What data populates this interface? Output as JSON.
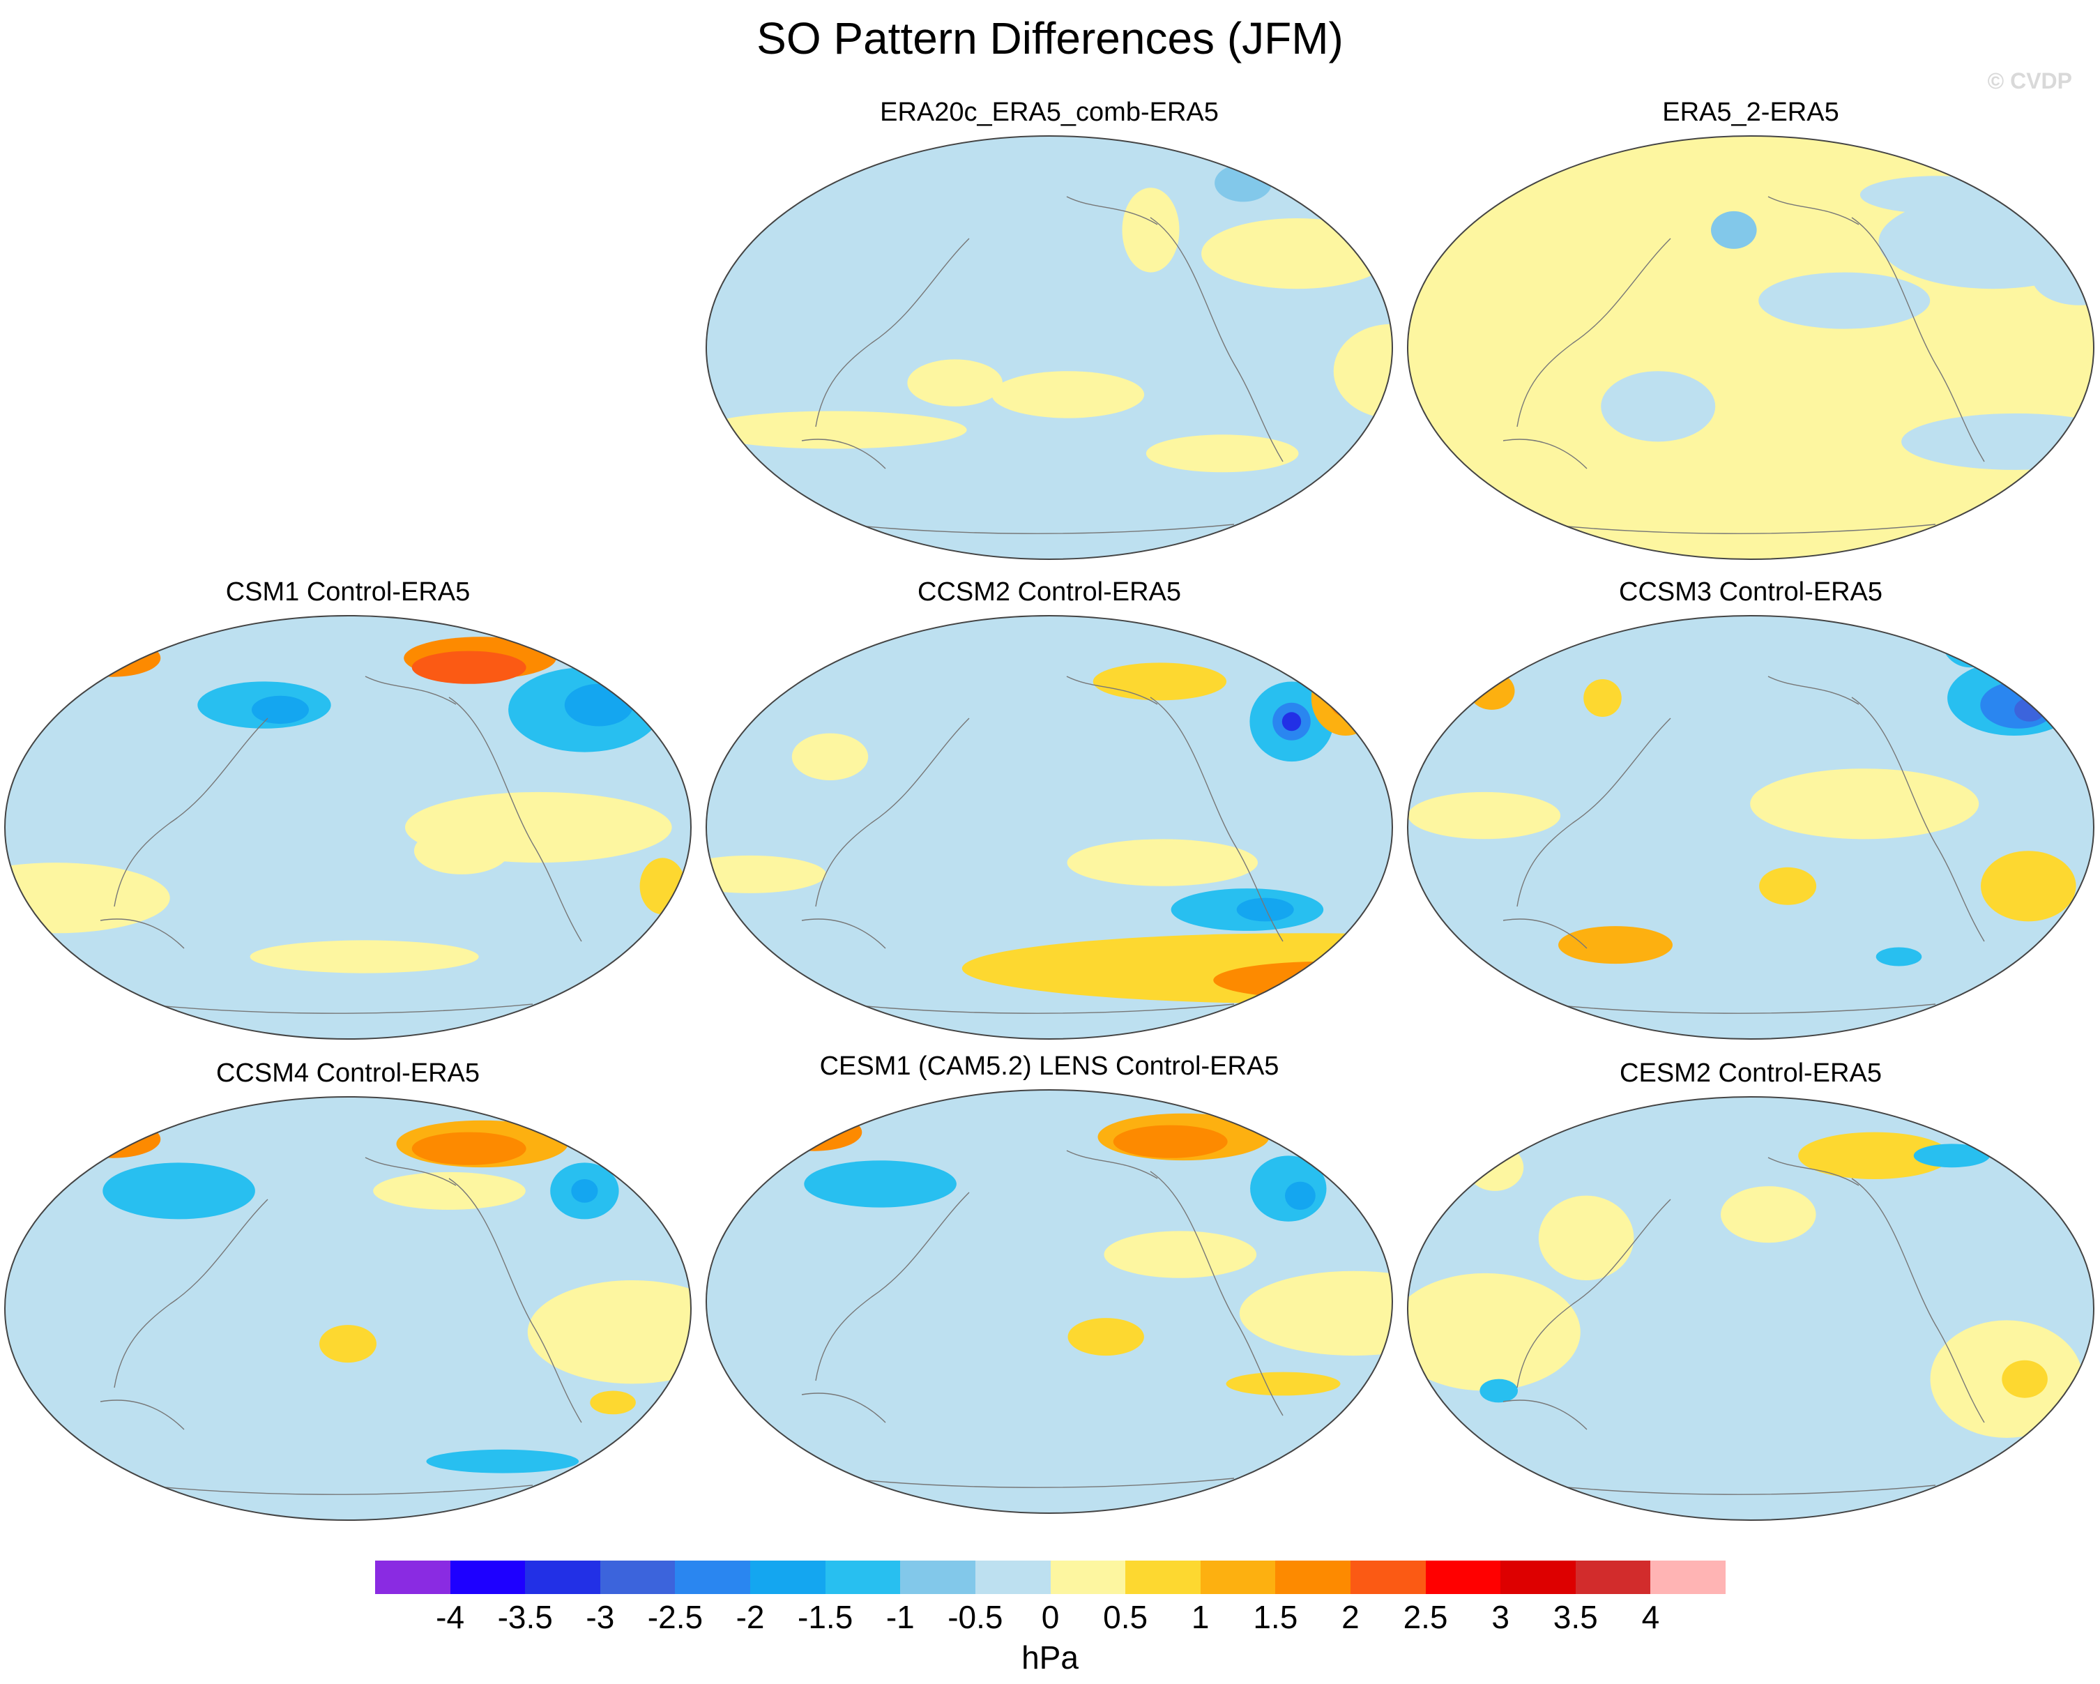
{
  "title": "SO Pattern Differences (JFM)",
  "watermark": "© CVDP",
  "panels": [
    {
      "id": "p1",
      "title": "ERA20c_ERA5_comb-ERA5",
      "base": "#bde0f0",
      "blobs": [
        {
          "lon": -20,
          "lat": 40,
          "rx": 50,
          "ry": 15,
          "level": 0.3
        },
        {
          "lon": 80,
          "lat": -35,
          "rx": 70,
          "ry": 8,
          "level": 0.3
        },
        {
          "lon": -150,
          "lat": -20,
          "rx": 40,
          "ry": 10,
          "level": 0.3
        },
        {
          "lon": 20,
          "lat": -10,
          "rx": 30,
          "ry": 20,
          "level": 0.3
        },
        {
          "lon": -100,
          "lat": 50,
          "rx": 15,
          "ry": 18,
          "level": 0.3
        },
        {
          "lon": 150,
          "lat": -15,
          "rx": 25,
          "ry": 10,
          "level": 0.3
        },
        {
          "lon": -60,
          "lat": -45,
          "rx": 40,
          "ry": 8,
          "level": 0.3
        },
        {
          "lon": -30,
          "lat": 70,
          "rx": 15,
          "ry": 8,
          "level": -0.7
        }
      ]
    },
    {
      "id": "p2",
      "title": "ERA5_2-ERA5",
      "base": "#fdf6a0",
      "blobs": [
        {
          "lon": -20,
          "lat": 45,
          "rx": 60,
          "ry": 20,
          "level": -0.3
        },
        {
          "lon": -10,
          "lat": -40,
          "rx": 60,
          "ry": 12,
          "level": -0.3
        },
        {
          "lon": 150,
          "lat": -25,
          "rx": 30,
          "ry": 15,
          "level": -0.3
        },
        {
          "lon": -110,
          "lat": 20,
          "rx": 45,
          "ry": 12,
          "level": -0.3
        },
        {
          "lon": 20,
          "lat": 30,
          "rx": 25,
          "ry": 12,
          "level": -0.3
        },
        {
          "lon": -170,
          "lat": 50,
          "rx": 12,
          "ry": 8,
          "level": -0.7
        },
        {
          "lon": -40,
          "lat": 65,
          "rx": 40,
          "ry": 8,
          "level": -0.3
        }
      ]
    },
    {
      "id": "p3",
      "title": "CSM1 Control-ERA5",
      "base": "#bde0f0",
      "blobs": [
        {
          "lon": -70,
          "lat": 72,
          "rx": 40,
          "ry": 9,
          "level": 1.6
        },
        {
          "lon": -80,
          "lat": 68,
          "rx": 30,
          "ry": 7,
          "level": 2.1
        },
        {
          "lon": 40,
          "lat": 72,
          "rx": 25,
          "ry": 8,
          "level": 1.6
        },
        {
          "lon": -20,
          "lat": 50,
          "rx": 40,
          "ry": 18,
          "level": -1.1
        },
        {
          "lon": -10,
          "lat": 52,
          "rx": 18,
          "ry": 9,
          "level": -1.7
        },
        {
          "lon": 150,
          "lat": 52,
          "rx": 35,
          "ry": 10,
          "level": -1.1
        },
        {
          "lon": 160,
          "lat": 50,
          "rx": 15,
          "ry": 6,
          "level": -1.7
        },
        {
          "lon": -60,
          "lat": 0,
          "rx": 70,
          "ry": 15,
          "level": 0.3
        },
        {
          "lon": 40,
          "lat": -30,
          "rx": 60,
          "ry": 15,
          "level": 0.3
        },
        {
          "lon": 10,
          "lat": -25,
          "rx": 12,
          "ry": 12,
          "level": 0.8
        },
        {
          "lon": -100,
          "lat": -10,
          "rx": 25,
          "ry": 10,
          "level": 0.3
        },
        {
          "lon": -150,
          "lat": -55,
          "rx": 60,
          "ry": 7,
          "level": 0.3
        }
      ]
    },
    {
      "id": "p4",
      "title": "CCSM2 Control-ERA5",
      "base": "#bde0f0",
      "blobs": [
        {
          "lon": -20,
          "lat": 45,
          "rx": 22,
          "ry": 17,
          "level": -1.2
        },
        {
          "lon": -20,
          "lat": 45,
          "rx": 10,
          "ry": 8,
          "level": -2.5
        },
        {
          "lon": -20,
          "lat": 45,
          "rx": 5,
          "ry": 4,
          "level": -3.2
        },
        {
          "lon": 20,
          "lat": 55,
          "rx": 18,
          "ry": 16,
          "level": 1.2
        },
        {
          "lon": 20,
          "lat": 55,
          "rx": 9,
          "ry": 8,
          "level": 1.8
        },
        {
          "lon": 0,
          "lat": -60,
          "rx": 180,
          "ry": 15,
          "level": 0.8
        },
        {
          "lon": 20,
          "lat": -65,
          "rx": 60,
          "ry": 8,
          "level": 1.6
        },
        {
          "lon": -50,
          "lat": -35,
          "rx": 40,
          "ry": 9,
          "level": -1.2
        },
        {
          "lon": -40,
          "lat": -35,
          "rx": 15,
          "ry": 5,
          "level": -1.8
        },
        {
          "lon": -100,
          "lat": -15,
          "rx": 50,
          "ry": 10,
          "level": 0.3
        },
        {
          "lon": 40,
          "lat": -20,
          "rx": 40,
          "ry": 8,
          "level": 0.3
        },
        {
          "lon": -90,
          "lat": 62,
          "rx": 35,
          "ry": 8,
          "level": 0.8
        },
        {
          "lon": 80,
          "lat": 30,
          "rx": 20,
          "ry": 10,
          "level": 0.3
        }
      ]
    },
    {
      "id": "p5",
      "title": "CCSM3 Control-ERA5",
      "base": "#bde0f0",
      "blobs": [
        {
          "lon": 0,
          "lat": 55,
          "rx": 35,
          "ry": 16,
          "level": -1.2
        },
        {
          "lon": 0,
          "lat": 52,
          "rx": 20,
          "ry": 10,
          "level": -2.2
        },
        {
          "lon": 5,
          "lat": 50,
          "rx": 8,
          "ry": 5,
          "level": -3.0
        },
        {
          "lon": 0,
          "lat": 80,
          "rx": 15,
          "ry": 12,
          "level": -1.2
        },
        {
          "lon": 40,
          "lat": 58,
          "rx": 12,
          "ry": 8,
          "level": 1.2
        },
        {
          "lon": 110,
          "lat": 55,
          "rx": 10,
          "ry": 8,
          "level": 0.8
        },
        {
          "lon": -100,
          "lat": 10,
          "rx": 60,
          "ry": 15,
          "level": 0.3
        },
        {
          "lon": -10,
          "lat": -25,
          "rx": 25,
          "ry": 15,
          "level": 0.8
        },
        {
          "lon": 120,
          "lat": -50,
          "rx": 30,
          "ry": 8,
          "level": 1.2
        },
        {
          "lon": -140,
          "lat": -25,
          "rx": 15,
          "ry": 8,
          "level": 0.8
        },
        {
          "lon": 60,
          "lat": 5,
          "rx": 40,
          "ry": 10,
          "level": 0.3
        },
        {
          "lon": -70,
          "lat": -55,
          "rx": 12,
          "ry": 4,
          "level": -1.2
        }
      ]
    },
    {
      "id": "p6",
      "title": "CCSM4 Control-ERA5",
      "base": "#bde0f0",
      "blobs": [
        {
          "lon": -70,
          "lat": 70,
          "rx": 45,
          "ry": 10,
          "level": 1.2
        },
        {
          "lon": -80,
          "lat": 68,
          "rx": 30,
          "ry": 7,
          "level": 1.8
        },
        {
          "lon": 40,
          "lat": 72,
          "rx": 25,
          "ry": 8,
          "level": 1.6
        },
        {
          "lon": -20,
          "lat": 50,
          "rx": 18,
          "ry": 12,
          "level": -1.2
        },
        {
          "lon": -20,
          "lat": 50,
          "rx": 7,
          "ry": 5,
          "level": -1.8
        },
        {
          "lon": -10,
          "lat": -10,
          "rx": 55,
          "ry": 22,
          "level": 0.3
        },
        {
          "lon": -160,
          "lat": -15,
          "rx": 15,
          "ry": 8,
          "level": 0.8
        },
        {
          "lon": -10,
          "lat": -40,
          "rx": 12,
          "ry": 5,
          "level": 0.8
        },
        {
          "lon": 100,
          "lat": 50,
          "rx": 40,
          "ry": 12,
          "level": -1.2
        },
        {
          "lon": -100,
          "lat": 50,
          "rx": 40,
          "ry": 8,
          "level": 0.3
        },
        {
          "lon": -60,
          "lat": -65,
          "rx": 40,
          "ry": 5,
          "level": -1.2
        }
      ]
    },
    {
      "id": "p7",
      "title": "CESM1 (CAM5.2) LENS Control-ERA5",
      "base": "#bde0f0",
      "blobs": [
        {
          "lon": -70,
          "lat": 70,
          "rx": 45,
          "ry": 10,
          "level": 1.2
        },
        {
          "lon": -80,
          "lat": 68,
          "rx": 30,
          "ry": 7,
          "level": 1.8
        },
        {
          "lon": 40,
          "lat": 72,
          "rx": 25,
          "ry": 8,
          "level": 1.6
        },
        {
          "lon": -20,
          "lat": 48,
          "rx": 20,
          "ry": 14,
          "level": -1.2
        },
        {
          "lon": -15,
          "lat": 45,
          "rx": 8,
          "ry": 6,
          "level": -1.8
        },
        {
          "lon": 0,
          "lat": -5,
          "rx": 60,
          "ry": 18,
          "level": 0.3
        },
        {
          "lon": -130,
          "lat": -15,
          "rx": 20,
          "ry": 8,
          "level": 0.8
        },
        {
          "lon": -30,
          "lat": -35,
          "rx": 30,
          "ry": 5,
          "level": 0.8
        },
        {
          "lon": 100,
          "lat": 50,
          "rx": 40,
          "ry": 10,
          "level": -1.2
        },
        {
          "lon": -90,
          "lat": 20,
          "rx": 40,
          "ry": 10,
          "level": 0.3
        }
      ]
    },
    {
      "id": "p8",
      "title": "CESM2 Control-ERA5",
      "base": "#bde0f0",
      "blobs": [
        {
          "lon": -80,
          "lat": 65,
          "rx": 40,
          "ry": 10,
          "level": 0.8
        },
        {
          "lon": -20,
          "lat": -30,
          "rx": 40,
          "ry": 25,
          "level": 0.3
        },
        {
          "lon": -10,
          "lat": -30,
          "rx": 12,
          "ry": 8,
          "level": 0.8
        },
        {
          "lon": 60,
          "lat": -10,
          "rx": 50,
          "ry": 25,
          "level": 0.3
        },
        {
          "lon": -150,
          "lat": 40,
          "rx": 25,
          "ry": 12,
          "level": 0.3
        },
        {
          "lon": 40,
          "lat": 60,
          "rx": 15,
          "ry": 10,
          "level": 0.3
        },
        {
          "lon": 110,
          "lat": 30,
          "rx": 25,
          "ry": 18,
          "level": 0.3
        },
        {
          "lon": 60,
          "lat": -35,
          "rx": 10,
          "ry": 5,
          "level": -1.2
        },
        {
          "lon": -30,
          "lat": 65,
          "rx": 20,
          "ry": 5,
          "level": -1.2
        }
      ]
    }
  ],
  "colorbar": {
    "colors": [
      "#8a2be2",
      "#1e00ff",
      "#2230e6",
      "#3c64dc",
      "#2a86f0",
      "#14a6f0",
      "#28bff0",
      "#82c8ea",
      "#bde0f0",
      "#fdf6a0",
      "#fdd830",
      "#fdb010",
      "#fd8a00",
      "#fb5a14",
      "#ff0000",
      "#dd0000",
      "#d22c2c",
      "#ffb4b4"
    ],
    "labels": [
      "-4",
      "-3.5",
      "-3",
      "-2.5",
      "-2",
      "-1.5",
      "-1",
      "-0.5",
      "0",
      "0.5",
      "1",
      "1.5",
      "2",
      "2.5",
      "3",
      "3.5",
      "4"
    ],
    "units": "hPa"
  }
}
